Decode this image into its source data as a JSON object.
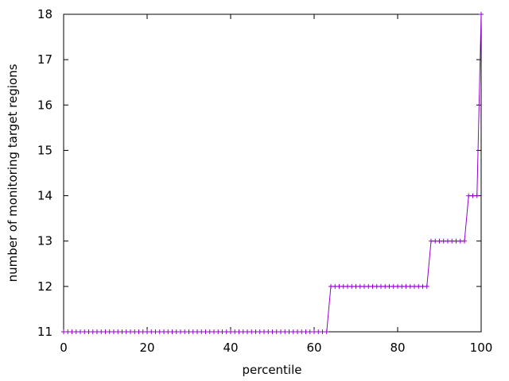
{
  "chart_data": {
    "type": "line",
    "xlabel": "percentile",
    "ylabel": "number of monitoring target regions",
    "x": [
      0,
      1,
      2,
      3,
      4,
      5,
      6,
      7,
      8,
      9,
      10,
      11,
      12,
      13,
      14,
      15,
      16,
      17,
      18,
      19,
      20,
      21,
      22,
      23,
      24,
      25,
      26,
      27,
      28,
      29,
      30,
      31,
      32,
      33,
      34,
      35,
      36,
      37,
      38,
      39,
      40,
      41,
      42,
      43,
      44,
      45,
      46,
      47,
      48,
      49,
      50,
      51,
      52,
      53,
      54,
      55,
      56,
      57,
      58,
      59,
      60,
      61,
      62,
      63,
      64,
      65,
      66,
      67,
      68,
      69,
      70,
      71,
      72,
      73,
      74,
      75,
      76,
      77,
      78,
      79,
      80,
      81,
      82,
      83,
      84,
      85,
      86,
      87,
      88,
      89,
      90,
      91,
      92,
      93,
      94,
      95,
      96,
      97,
      98,
      99,
      100
    ],
    "series": [
      {
        "color": "#9400d3",
        "values": [
          11,
          11,
          11,
          11,
          11,
          11,
          11,
          11,
          11,
          11,
          11,
          11,
          11,
          11,
          11,
          11,
          11,
          11,
          11,
          11,
          11,
          11,
          11,
          11,
          11,
          11,
          11,
          11,
          11,
          11,
          11,
          11,
          11,
          11,
          11,
          11,
          11,
          11,
          11,
          11,
          11,
          11,
          11,
          11,
          11,
          11,
          11,
          11,
          11,
          11,
          11,
          11,
          11,
          11,
          11,
          11,
          11,
          11,
          11,
          11,
          11,
          11,
          11,
          11,
          12,
          12,
          12,
          12,
          12,
          12,
          12,
          12,
          12,
          12,
          12,
          12,
          12,
          12,
          12,
          12,
          12,
          12,
          12,
          12,
          12,
          12,
          12,
          12,
          13,
          13,
          13,
          13,
          13,
          13,
          13,
          13,
          13,
          14,
          14,
          14,
          18
        ]
      }
    ],
    "xlim": [
      0,
      100
    ],
    "xticks": [
      0,
      20,
      40,
      60,
      80,
      100
    ],
    "ylim": [
      11,
      18
    ],
    "yticks": [
      11,
      12,
      13,
      14,
      15,
      16,
      17,
      18
    ],
    "grid": false
  }
}
